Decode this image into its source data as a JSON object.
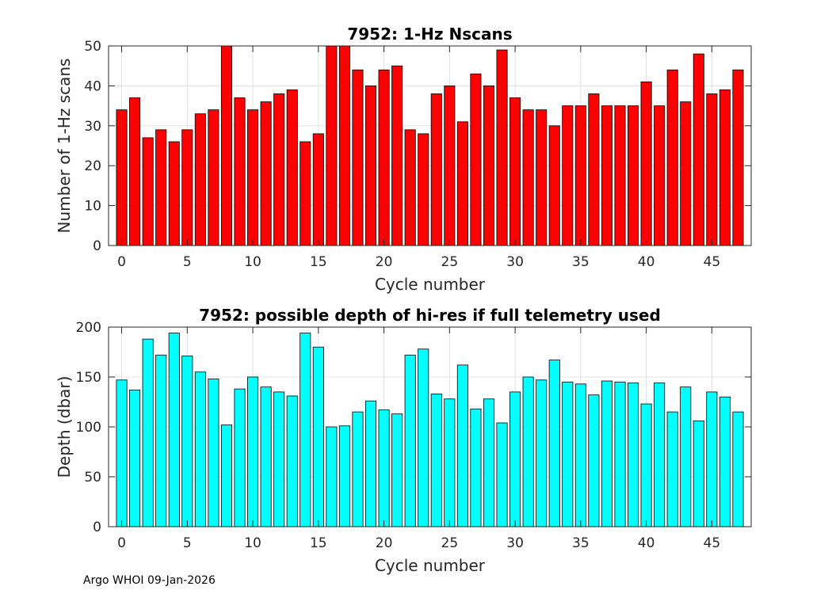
{
  "footer": "Argo WHOI 09-Jan-2026",
  "chart_data": [
    {
      "type": "bar",
      "title": "7952: 1-Hz Nscans",
      "xlabel": "Cycle number",
      "ylabel": "Number of 1-Hz scans",
      "xlim": [
        -1,
        48
      ],
      "ylim": [
        0,
        50
      ],
      "xticks": [
        0,
        5,
        10,
        15,
        20,
        25,
        30,
        35,
        40,
        45
      ],
      "yticks": [
        0,
        10,
        20,
        30,
        40,
        50
      ],
      "grid": true,
      "bar_color": "#ff0000",
      "x": [
        0,
        1,
        2,
        3,
        4,
        5,
        6,
        7,
        8,
        9,
        10,
        11,
        12,
        13,
        14,
        15,
        16,
        17,
        18,
        19,
        20,
        21,
        22,
        23,
        24,
        25,
        26,
        27,
        28,
        29,
        30,
        31,
        32,
        33,
        34,
        35,
        36,
        37,
        38,
        39,
        40,
        41,
        42,
        43,
        44,
        45,
        46,
        47
      ],
      "values": [
        34,
        37,
        27,
        29,
        26,
        29,
        33,
        34,
        50,
        37,
        34,
        36,
        38,
        39,
        26,
        28,
        50,
        50,
        44,
        40,
        44,
        45,
        29,
        28,
        38,
        40,
        31,
        43,
        40,
        49,
        37,
        34,
        34,
        30,
        35,
        35,
        38,
        35,
        35,
        35,
        41,
        35,
        44,
        36,
        48,
        38,
        39,
        44
      ]
    },
    {
      "type": "bar",
      "title": "7952: possible depth of hi-res if full telemetry used",
      "xlabel": "Cycle number",
      "ylabel": "Depth (dbar)",
      "xlim": [
        -1,
        48
      ],
      "ylim": [
        0,
        200
      ],
      "xticks": [
        0,
        5,
        10,
        15,
        20,
        25,
        30,
        35,
        40,
        45
      ],
      "yticks": [
        0,
        50,
        100,
        150,
        200
      ],
      "grid": true,
      "bar_color": "#00ffff",
      "x": [
        0,
        1,
        2,
        3,
        4,
        5,
        6,
        7,
        8,
        9,
        10,
        11,
        12,
        13,
        14,
        15,
        16,
        17,
        18,
        19,
        20,
        21,
        22,
        23,
        24,
        25,
        26,
        27,
        28,
        29,
        30,
        31,
        32,
        33,
        34,
        35,
        36,
        37,
        38,
        39,
        40,
        41,
        42,
        43,
        44,
        45,
        46,
        47
      ],
      "values": [
        147,
        137,
        188,
        172,
        194,
        171,
        155,
        148,
        102,
        138,
        150,
        140,
        135,
        131,
        194,
        180,
        100,
        101,
        115,
        126,
        117,
        113,
        172,
        178,
        133,
        128,
        162,
        118,
        128,
        104,
        135,
        150,
        147,
        167,
        145,
        143,
        132,
        146,
        145,
        144,
        123,
        144,
        115,
        140,
        106,
        135,
        130,
        115
      ]
    }
  ]
}
